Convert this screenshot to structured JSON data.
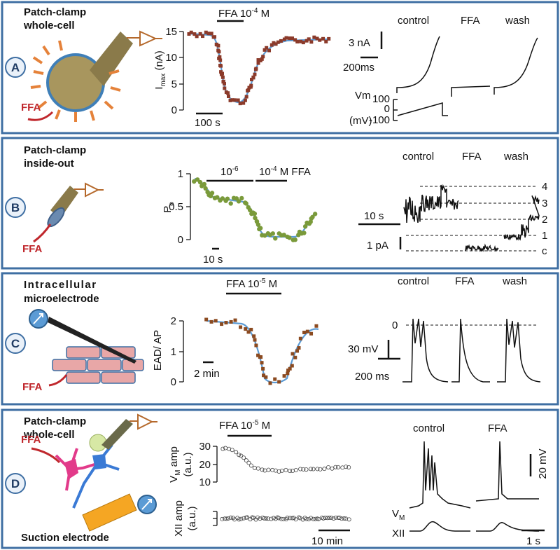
{
  "panels": [
    {
      "letter": "A",
      "title": [
        "Patch-clamp",
        "whole-cell"
      ],
      "agent": "FFA",
      "graph": {
        "label": [
          "FFA 10",
          "-4",
          " M"
        ],
        "ylabel": [
          "I",
          "max",
          " (nA)"
        ],
        "yticks": [
          "15",
          "10",
          "5",
          "0"
        ],
        "scalebar": "100 s"
      },
      "traces": {
        "conditions": [
          "control",
          "FFA",
          "wash"
        ],
        "current_scale": "3 nA",
        "time_scale": "200ms",
        "vm_label": [
          "Vm",
          "(mV)"
        ],
        "vm_ticks": [
          "100",
          "0",
          "-100"
        ]
      }
    },
    {
      "letter": "B",
      "title": [
        "Patch-clamp",
        "inside-out"
      ],
      "agent": "FFA",
      "graph": {
        "label1": [
          "10",
          "-6"
        ],
        "label2": [
          "10",
          "-4",
          " M FFA"
        ],
        "ylabel": [
          "P",
          "o"
        ],
        "yticks": [
          "1",
          "0.5",
          "0"
        ],
        "scalebar": "10 s"
      },
      "traces": {
        "conditions": [
          "control",
          "FFA",
          "wash"
        ],
        "time_scale": "10 s",
        "current_scale": "1 pA",
        "levels": [
          "4",
          "3",
          "2",
          "1",
          "c"
        ]
      }
    },
    {
      "letter": "C",
      "title": [
        "Intracellular",
        "microelectrode"
      ],
      "agent": "FFA",
      "graph": {
        "label": [
          "FFA 10",
          "-5",
          " M"
        ],
        "ylabel": "EAD/ AP",
        "yticks": [
          "2",
          "1",
          "0"
        ],
        "scalebar": "2 min"
      },
      "traces": {
        "conditions": [
          "control",
          "FFA",
          "wash"
        ],
        "zero": "0",
        "voltage_scale": "30 mV",
        "time_scale": "200 ms"
      }
    },
    {
      "letter": "D",
      "title": [
        "Patch-clamp",
        "whole-cell"
      ],
      "electrode": "Suction electrode",
      "agent": "FFA",
      "graph": {
        "label": [
          "FFA 10",
          "-5",
          " M"
        ],
        "ylabel1": [
          "V",
          "M",
          " amp"
        ],
        "ylabel1_unit": "(a.u.)",
        "yticks": [
          "30",
          "20",
          "10"
        ],
        "ylabel2": "XII amp",
        "ylabel2_unit": "(a.u.)",
        "scalebar": "10 min"
      },
      "traces": {
        "conditions": [
          "control",
          "FFA"
        ],
        "voltage_scale": "20 mV",
        "time_scale": "1 s",
        "vm_label": [
          "V",
          "M"
        ],
        "xii_label": "XII"
      }
    }
  ]
}
